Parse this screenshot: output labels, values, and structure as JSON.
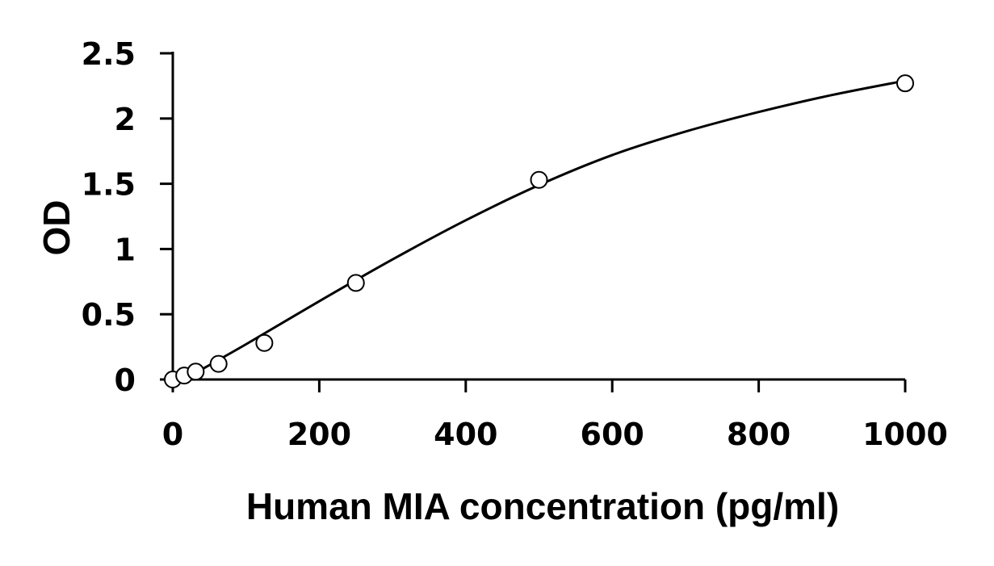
{
  "chart_data": {
    "type": "scatter",
    "title": "",
    "xlabel": "Human MIA concentration (pg/ml)",
    "ylabel": "OD",
    "xlim": [
      0,
      1000
    ],
    "ylim": [
      0,
      2.5
    ],
    "x_ticks": [
      0,
      200,
      400,
      600,
      800,
      1000
    ],
    "y_ticks": [
      0,
      0.5,
      1,
      1.5,
      2,
      2.5
    ],
    "x_tick_labels": [
      "0",
      "200",
      "400",
      "600",
      "800",
      "1000"
    ],
    "y_tick_labels": [
      "0",
      "0.5",
      "1",
      "1.5",
      "2",
      "2.5"
    ],
    "grid": false,
    "legend": "none",
    "series": [
      {
        "x": [
          0,
          15.6,
          31.25,
          62.5,
          125,
          250,
          500,
          1000
        ],
        "y": [
          0.0,
          0.03,
          0.06,
          0.12,
          0.28,
          0.74,
          1.53,
          2.27
        ],
        "marker": "open-circle"
      }
    ],
    "fit_curve": {
      "style": "smooth",
      "x": [
        15,
        100,
        200,
        300,
        400,
        500,
        600,
        700,
        800,
        900,
        1000
      ],
      "y": [
        0.0,
        0.27,
        0.6,
        0.92,
        1.22,
        1.49,
        1.72,
        1.9,
        2.05,
        2.18,
        2.29
      ]
    },
    "colors": {
      "axis": "#000000",
      "marker_fill": "#ffffff",
      "background": "#ffffff"
    }
  }
}
